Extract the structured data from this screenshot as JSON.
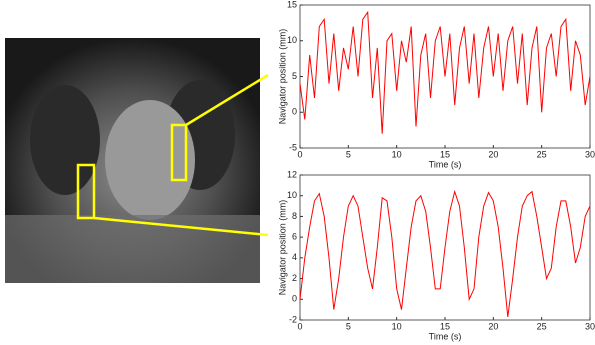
{
  "chart_data": [
    {
      "type": "line",
      "x_label": "Time (s)",
      "y_label": "Navigator position (mm)",
      "color": "#ff0000",
      "xlim": [
        0,
        30
      ],
      "xticks": [
        0,
        5,
        10,
        15,
        20,
        25,
        30
      ],
      "ylim": [
        -5,
        15
      ],
      "yticks": [
        -5,
        0,
        5,
        10,
        15
      ],
      "x": [
        0,
        0.5,
        1,
        1.5,
        2,
        2.5,
        3,
        3.5,
        4,
        4.5,
        5,
        5.5,
        6,
        6.5,
        7,
        7.5,
        8,
        8.5,
        9,
        9.5,
        10,
        10.5,
        11,
        11.5,
        12,
        12.5,
        13,
        13.5,
        14,
        14.5,
        15,
        15.5,
        16,
        16.5,
        17,
        17.5,
        18,
        18.5,
        19,
        19.5,
        20,
        20.5,
        21,
        21.5,
        22,
        22.5,
        23,
        23.5,
        24,
        24.5,
        25,
        25.5,
        26,
        26.5,
        27,
        27.5,
        28,
        28.5,
        29,
        29.5,
        30
      ],
      "values": [
        4,
        -1,
        8,
        2,
        12,
        13,
        4,
        11,
        3,
        9,
        6,
        12,
        5,
        13,
        14,
        2,
        9,
        -3,
        10,
        11,
        3,
        10,
        7,
        12,
        -2,
        8,
        11,
        2,
        10,
        12,
        5,
        11,
        1,
        9,
        12,
        4,
        11,
        2,
        9,
        12,
        5,
        11,
        3,
        10,
        12,
        4,
        11,
        1,
        9,
        12,
        0,
        9,
        11,
        5,
        12,
        13,
        3,
        10,
        8,
        1,
        5
      ]
    },
    {
      "type": "line",
      "x_label": "Time (s)",
      "y_label": "Navigator position (mm)",
      "color": "#ff0000",
      "xlim": [
        0,
        30
      ],
      "xticks": [
        0,
        5,
        10,
        15,
        20,
        25,
        30
      ],
      "ylim": [
        -2,
        12
      ],
      "yticks": [
        -2,
        0,
        2,
        4,
        6,
        8,
        10,
        12
      ],
      "x": [
        0,
        0.5,
        1,
        1.5,
        2,
        2.5,
        3,
        3.5,
        4,
        4.5,
        5,
        5.5,
        6,
        6.5,
        7,
        7.5,
        8,
        8.5,
        9,
        9.5,
        10,
        10.5,
        11,
        11.5,
        12,
        12.5,
        13,
        13.5,
        14,
        14.5,
        15,
        15.5,
        16,
        16.5,
        17,
        17.5,
        18,
        18.5,
        19,
        19.5,
        20,
        20.5,
        21,
        21.5,
        22,
        22.5,
        23,
        23.5,
        24,
        24.5,
        25,
        25.5,
        26,
        26.5,
        27,
        27.5,
        28,
        28.5,
        29,
        29.5,
        30
      ],
      "values": [
        0,
        4,
        7,
        9.5,
        10.2,
        8,
        4,
        -1,
        2,
        6,
        9,
        10,
        9,
        6,
        3,
        1,
        5,
        9.8,
        9.5,
        6,
        1,
        -1,
        3,
        7,
        9.5,
        10,
        8.5,
        5,
        1,
        1,
        5,
        8.5,
        10.4,
        9,
        5,
        0,
        1,
        6,
        9,
        10.3,
        9.5,
        7,
        3,
        -1.7,
        2,
        6,
        9,
        10,
        10.4,
        8,
        5,
        2,
        3,
        7,
        9.5,
        9.5,
        7,
        3.5,
        5,
        8,
        9
      ]
    }
  ]
}
